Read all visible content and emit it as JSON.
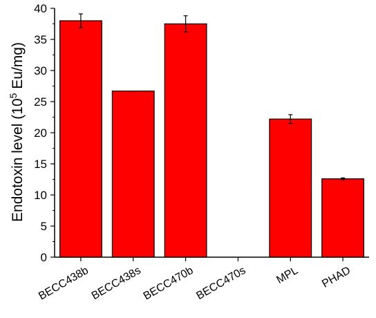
{
  "chart_data": {
    "type": "bar",
    "title": "",
    "xlabel": "",
    "ylabel_prefix": "Endotoxin level (10",
    "ylabel_exponent": "5",
    "ylabel_suffix": " Eu/mg)",
    "categories": [
      "BECC438b",
      "BECC438s",
      "BECC470b",
      "BECC470s",
      "MPL",
      "PHAD"
    ],
    "values": [
      38.0,
      26.7,
      37.5,
      0,
      22.2,
      12.6
    ],
    "errors": [
      1.1,
      0,
      1.3,
      0,
      0.7,
      0.15
    ],
    "ylim": [
      0,
      40
    ],
    "yticks": [
      0,
      5,
      10,
      15,
      20,
      25,
      30,
      35,
      40
    ],
    "bar_color": "#ff0000",
    "grid": false,
    "legend": "none"
  }
}
